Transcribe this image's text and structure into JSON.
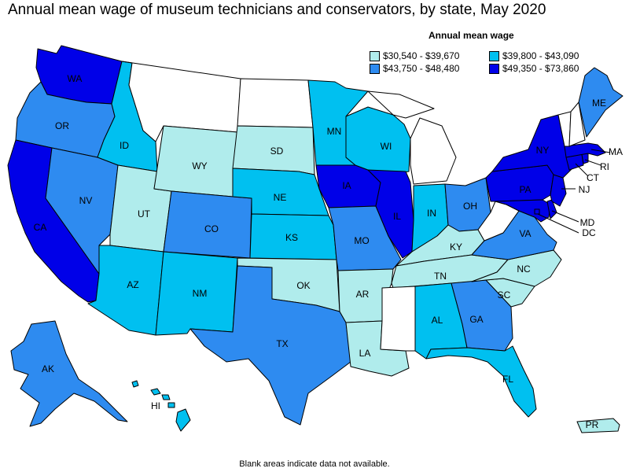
{
  "title": "Annual mean wage of museum technicians and conservators, by state, May 2020",
  "legend": {
    "title": "Annual mean wage",
    "items": [
      {
        "label": "$30,540 - $39,670",
        "color": "#b0ecec"
      },
      {
        "label": "$39,800 - $43,090",
        "color": "#00c0f0"
      },
      {
        "label": "$43,750 - $48,480",
        "color": "#2e8bf0"
      },
      {
        "label": "$49,350 - $73,860",
        "color": "#0000e8"
      }
    ]
  },
  "footnote": "Blank areas indicate data not available.",
  "colors": {
    "c1": "#b0ecec",
    "c2": "#00c0f0",
    "c3": "#2e8bf0",
    "c4": "#0000e8",
    "blank": "#ffffff"
  },
  "states": [
    {
      "abbr": "WA",
      "bin": "c4"
    },
    {
      "abbr": "OR",
      "bin": "c3"
    },
    {
      "abbr": "CA",
      "bin": "c4"
    },
    {
      "abbr": "ID",
      "bin": "c2"
    },
    {
      "abbr": "NV",
      "bin": "c3"
    },
    {
      "abbr": "UT",
      "bin": "c1"
    },
    {
      "abbr": "AZ",
      "bin": "c2"
    },
    {
      "abbr": "MT",
      "bin": "blank"
    },
    {
      "abbr": "WY",
      "bin": "c1"
    },
    {
      "abbr": "CO",
      "bin": "c3"
    },
    {
      "abbr": "NM",
      "bin": "c2"
    },
    {
      "abbr": "ND",
      "bin": "blank"
    },
    {
      "abbr": "SD",
      "bin": "c1"
    },
    {
      "abbr": "NE",
      "bin": "c2"
    },
    {
      "abbr": "KS",
      "bin": "c2"
    },
    {
      "abbr": "OK",
      "bin": "c1"
    },
    {
      "abbr": "TX",
      "bin": "c3"
    },
    {
      "abbr": "MN",
      "bin": "c2"
    },
    {
      "abbr": "IA",
      "bin": "c4"
    },
    {
      "abbr": "MO",
      "bin": "c3"
    },
    {
      "abbr": "AR",
      "bin": "c1"
    },
    {
      "abbr": "LA",
      "bin": "c1"
    },
    {
      "abbr": "WI",
      "bin": "c2"
    },
    {
      "abbr": "IL",
      "bin": "c4"
    },
    {
      "abbr": "MI",
      "bin": "blank"
    },
    {
      "abbr": "IN",
      "bin": "c2"
    },
    {
      "abbr": "OH",
      "bin": "c3"
    },
    {
      "abbr": "KY",
      "bin": "c1"
    },
    {
      "abbr": "TN",
      "bin": "c1"
    },
    {
      "abbr": "MS",
      "bin": "blank"
    },
    {
      "abbr": "AL",
      "bin": "c2"
    },
    {
      "abbr": "GA",
      "bin": "c3"
    },
    {
      "abbr": "FL",
      "bin": "c2"
    },
    {
      "abbr": "SC",
      "bin": "c1"
    },
    {
      "abbr": "NC",
      "bin": "c1"
    },
    {
      "abbr": "VA",
      "bin": "c3"
    },
    {
      "abbr": "WV",
      "bin": "blank"
    },
    {
      "abbr": "MD",
      "bin": "c4"
    },
    {
      "abbr": "DC",
      "bin": "c4"
    },
    {
      "abbr": "DE",
      "bin": "c4"
    },
    {
      "abbr": "PA",
      "bin": "c4"
    },
    {
      "abbr": "NJ",
      "bin": "c4"
    },
    {
      "abbr": "NY",
      "bin": "c4"
    },
    {
      "abbr": "CT",
      "bin": "c4"
    },
    {
      "abbr": "RI",
      "bin": "c4"
    },
    {
      "abbr": "MA",
      "bin": "c4"
    },
    {
      "abbr": "VT",
      "bin": "blank"
    },
    {
      "abbr": "NH",
      "bin": "blank"
    },
    {
      "abbr": "ME",
      "bin": "c3"
    },
    {
      "abbr": "AK",
      "bin": "c3"
    },
    {
      "abbr": "HI",
      "bin": "c2"
    },
    {
      "abbr": "PR",
      "bin": "c1"
    }
  ]
}
